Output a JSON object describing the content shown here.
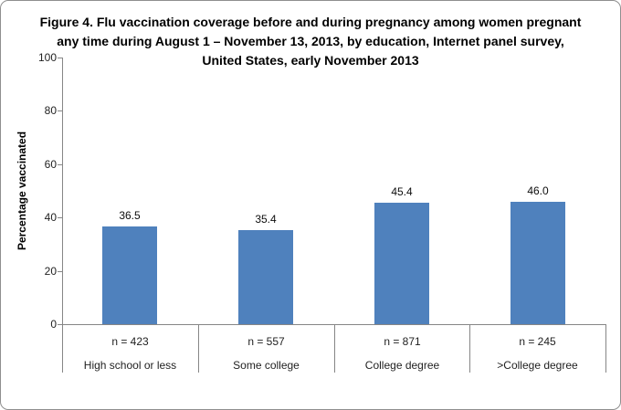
{
  "chart_data": {
    "type": "bar",
    "title": "Figure 4. Flu vaccination coverage before and during pregnancy among women pregnant any time during August 1 – November 13, 2013, by education, Internet panel survey, United States, early November 2013",
    "ylabel": "Percentage vaccinated",
    "xlabel": "",
    "ylim": [
      0,
      100
    ],
    "yticks": [
      0,
      20,
      40,
      60,
      80,
      100
    ],
    "categories": [
      "High school or less",
      "Some college",
      "College degree",
      ">College degree"
    ],
    "sample_sizes": [
      "n = 423",
      "n = 557",
      "n = 871",
      "n = 245"
    ],
    "values": [
      36.5,
      35.4,
      45.4,
      46.0
    ],
    "value_labels": [
      "36.5",
      "35.4",
      "45.4",
      "46.0"
    ],
    "bar_color": "#4F81BD",
    "axis_color": "#868686",
    "text_color": "#000000",
    "grid": false,
    "legend": false
  }
}
